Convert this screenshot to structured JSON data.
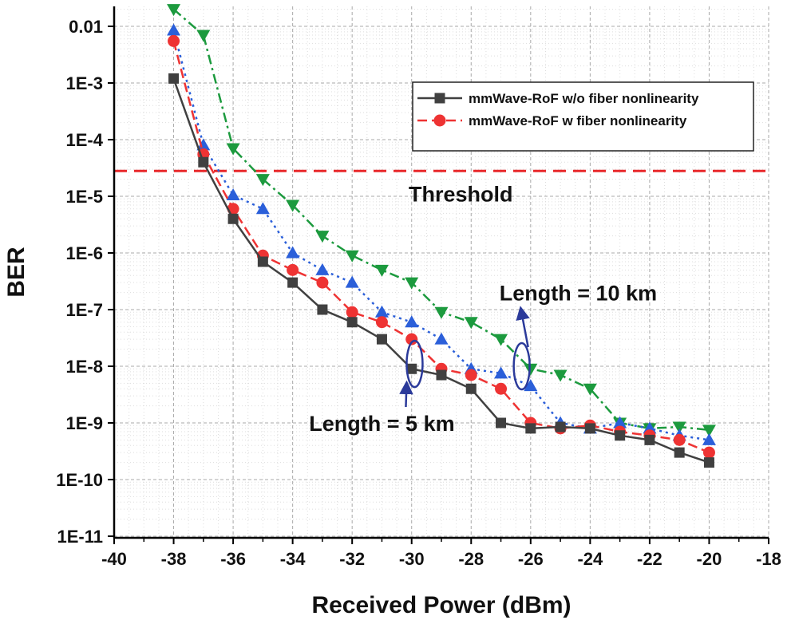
{
  "chart_data": {
    "type": "line",
    "title": "",
    "xlabel": "Received Power (dBm)",
    "ylabel": "BER",
    "xlim": [
      -40,
      -18
    ],
    "ylim": [
      1e-11,
      0.02
    ],
    "yscale": "log",
    "x_ticks": [
      -40,
      -38,
      -36,
      -34,
      -32,
      -30,
      -28,
      -26,
      -24,
      -22,
      -20,
      -18
    ],
    "y_ticks": [
      {
        "value": 0.01,
        "label": "0.01"
      },
      {
        "value": 0.001,
        "label": "1E-3"
      },
      {
        "value": 0.0001,
        "label": "1E-4"
      },
      {
        "value": 1e-05,
        "label": "1E-5"
      },
      {
        "value": 1e-06,
        "label": "1E-6"
      },
      {
        "value": 1e-07,
        "label": "1E-7"
      },
      {
        "value": 1e-08,
        "label": "1E-8"
      },
      {
        "value": 1e-09,
        "label": "1E-9"
      },
      {
        "value": 1e-10,
        "label": "1E-10"
      },
      {
        "value": 1e-11,
        "label": "1E-11"
      }
    ],
    "grid": true,
    "x": [
      -38,
      -37,
      -36,
      -35,
      -34,
      -33,
      -32,
      -31,
      -30,
      -29,
      -28,
      -27,
      -26,
      -25,
      -24,
      -23,
      -22,
      -21,
      -20
    ],
    "series": [
      {
        "name": "mmWave-RoF w/o fiber nonlinearity",
        "in_legend": true,
        "color": "#404040",
        "marker": "square",
        "dash": "",
        "values": [
          0.0012,
          4e-05,
          4e-06,
          7e-07,
          3e-07,
          1e-07,
          6e-08,
          3e-08,
          9e-09,
          7e-09,
          4e-09,
          1e-09,
          8e-10,
          8.5e-10,
          8e-10,
          6e-10,
          5e-10,
          3e-10,
          2e-10
        ]
      },
      {
        "name": "mmWave-RoF w fiber nonlinearity",
        "in_legend": true,
        "color": "#ee3333",
        "marker": "circle",
        "dash": "12 6",
        "values": [
          0.0055,
          5.5e-05,
          6e-06,
          9e-07,
          5e-07,
          3e-07,
          9e-08,
          6e-08,
          3e-08,
          9e-09,
          7e-09,
          4e-09,
          1e-09,
          8e-10,
          9e-10,
          7e-10,
          6e-10,
          5e-10,
          3e-10
        ]
      },
      {
        "name": "w fiber nonlinearity (Length = 5 km)",
        "in_legend": false,
        "color": "#2b5fd9",
        "marker": "triangle-up",
        "dash": "3 5",
        "values": [
          0.0085,
          8e-05,
          1.05e-05,
          6e-06,
          1e-06,
          5e-07,
          3e-07,
          9e-08,
          6e-08,
          3e-08,
          9e-09,
          7.5e-09,
          4.5e-09,
          1e-09,
          8e-10,
          1e-09,
          8e-10,
          6e-10,
          5e-10
        ]
      },
      {
        "name": "w fiber nonlinearity (Length = 10 km)",
        "in_legend": false,
        "color": "#1c9a3e",
        "marker": "triangle-down",
        "dash": "12 5 3 5",
        "values": [
          0.02,
          0.007,
          7e-05,
          2e-05,
          7e-06,
          2e-06,
          9e-07,
          5e-07,
          3e-07,
          9e-08,
          6e-08,
          3e-08,
          9e-09,
          7e-09,
          4e-09,
          1e-09,
          8e-10,
          8.5e-10,
          7.5e-10
        ]
      }
    ],
    "threshold": {
      "label": "Threshold",
      "value": 2.8e-05,
      "color": "#e8282b"
    },
    "annotations": [
      {
        "text": "Length = 5 km",
        "ellipse_x": -29.9,
        "ellipse_y": 1.1e-08,
        "text_x": -31,
        "text_y": 1e-09
      },
      {
        "text": "Length = 10 km",
        "ellipse_x": -26.3,
        "ellipse_y": 1e-08,
        "text_x": -24.4,
        "text_y": 2e-07
      }
    ],
    "legend_position": "top-right"
  }
}
